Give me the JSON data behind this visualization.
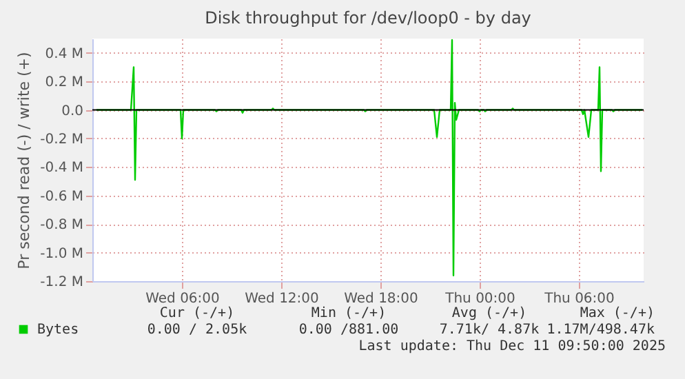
{
  "chart_data": {
    "type": "line",
    "title": "Disk throughput for /dev/loop0 - by day",
    "ylabel": "Pr second read (-) / write (+)",
    "x": [
      "2025-12-10T00:50",
      "2025-12-10T02:55",
      "2025-12-10T03:05",
      "2025-12-10T03:10",
      "2025-12-10T03:15",
      "2025-12-10T05:55",
      "2025-12-10T06:00",
      "2025-12-10T06:05",
      "2025-12-10T08:00",
      "2025-12-10T08:05",
      "2025-12-10T08:10",
      "2025-12-10T09:35",
      "2025-12-10T09:40",
      "2025-12-10T09:45",
      "2025-12-10T11:25",
      "2025-12-10T11:30",
      "2025-12-10T11:35",
      "2025-12-10T17:00",
      "2025-12-10T17:05",
      "2025-12-10T17:10",
      "2025-12-10T21:15",
      "2025-12-10T21:25",
      "2025-12-10T21:35",
      "2025-12-10T22:15",
      "2025-12-10T22:20",
      "2025-12-10T22:25",
      "2025-12-10T22:30",
      "2025-12-10T22:35",
      "2025-12-10T22:45",
      "2025-12-10T23:55",
      "2025-12-11T00:00",
      "2025-12-11T00:05",
      "2025-12-11T00:15",
      "2025-12-11T00:20",
      "2025-12-11T00:25",
      "2025-12-11T01:55",
      "2025-12-11T02:00",
      "2025-12-11T02:05",
      "2025-12-11T06:10",
      "2025-12-11T06:15",
      "2025-12-11T06:20",
      "2025-12-11T06:35",
      "2025-12-11T06:45",
      "2025-12-11T07:10",
      "2025-12-11T07:15",
      "2025-12-11T07:20",
      "2025-12-11T07:25",
      "2025-12-11T08:00",
      "2025-12-11T08:05",
      "2025-12-11T08:10",
      "2025-12-11T09:50"
    ],
    "series": [
      {
        "name": "Bytes",
        "color": "#00cc00",
        "values": [
          0,
          0,
          300000,
          -490000,
          0,
          0,
          -200000,
          0,
          0,
          -10000,
          0,
          0,
          -20000,
          0,
          0,
          10000,
          0,
          0,
          -10000,
          0,
          0,
          -190000,
          0,
          0,
          490000,
          -1160000,
          50000,
          -70000,
          0,
          0,
          -10000,
          0,
          0,
          -10000,
          0,
          0,
          10000,
          0,
          0,
          -30000,
          0,
          -190000,
          0,
          0,
          300000,
          -430000,
          0,
          0,
          -10000,
          0,
          0
        ]
      }
    ],
    "xlim": [
      "2025-12-10T00:35",
      "2025-12-11T09:55"
    ],
    "xticks": [
      {
        "value": "2025-12-10T06:00",
        "label": "Wed 06:00"
      },
      {
        "value": "2025-12-10T12:00",
        "label": "Wed 12:00"
      },
      {
        "value": "2025-12-10T18:00",
        "label": "Wed 18:00"
      },
      {
        "value": "2025-12-11T00:00",
        "label": "Thu 00:00"
      },
      {
        "value": "2025-12-11T06:00",
        "label": "Thu 06:00"
      }
    ],
    "ylim": [
      -1200000,
      500000
    ],
    "yticks": [
      {
        "value": -1200000,
        "label": "-1.2 M"
      },
      {
        "value": -1000000,
        "label": "-1.0 M"
      },
      {
        "value": -800000,
        "label": "-0.8 M"
      },
      {
        "value": -600000,
        "label": "-0.6 M"
      },
      {
        "value": -400000,
        "label": "-0.4 M"
      },
      {
        "value": -200000,
        "label": "-0.2 M"
      },
      {
        "value": 0,
        "label": "0.0"
      },
      {
        "value": 200000,
        "label": "0.2 M"
      },
      {
        "value": 400000,
        "label": "0.4 M"
      }
    ],
    "ref_lines": [
      {
        "axis": "y",
        "value": 0,
        "color": "#000000"
      }
    ],
    "grid": true,
    "legend": "bottom",
    "line_style": "solid",
    "marker": "none",
    "annotations": [
      "Cur (-/+)",
      "Min (-/+)",
      "Avg (-/+)",
      "Max (-/+)",
      "0.00 /  2.05k",
      "0.00 /881.00",
      "7.71k/  4.87k",
      "1.17M/498.47k",
      "Last update: Thu Dec 11 09:50:00 2025"
    ]
  }
}
